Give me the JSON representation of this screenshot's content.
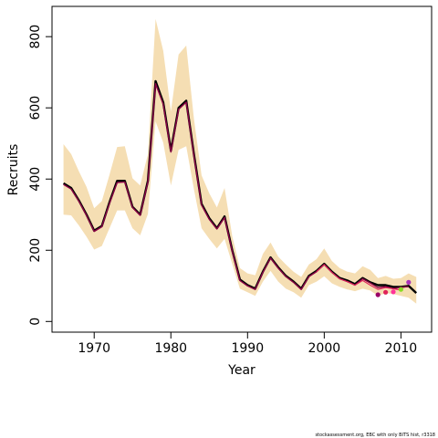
{
  "chart_data": {
    "type": "line",
    "xlabel": "Year",
    "ylabel": "Recruits",
    "xlim": [
      1964.5,
      2014
    ],
    "ylim": [
      -30,
      885
    ],
    "x_ticks": [
      1970,
      1980,
      1990,
      2000,
      2010
    ],
    "y_ticks": [
      0,
      200,
      400,
      600,
      800
    ],
    "x_tick_labels": [
      "1970",
      "1980",
      "1990",
      "2000",
      "2010"
    ],
    "y_tick_labels": [
      "0",
      "200",
      "400",
      "600",
      "800"
    ],
    "grid": false,
    "footnote": "stockassessment.org, EBC with only BITS hist, r3318",
    "colors": {
      "band": "#f5deb3",
      "main": "#000000",
      "retro": "#cc1a66",
      "retro_dark": "#8b0045",
      "point_purple": "#990066",
      "point_red": "#e0245a",
      "point_pink": "#ff3399",
      "point_green": "#88dd22",
      "point_magenta": "#aa33bb"
    },
    "confidence_band": {
      "x": [
        1966,
        1967,
        1968,
        1969,
        1970,
        1971,
        1972,
        1973,
        1974,
        1975,
        1976,
        1977,
        1978,
        1979,
        1980,
        1981,
        1982,
        1983,
        1984,
        1985,
        1986,
        1987,
        1988,
        1989,
        1990,
        1991,
        1992,
        1993,
        1994,
        1995,
        1996,
        1997,
        1998,
        1999,
        2000,
        2001,
        2002,
        2003,
        2004,
        2005,
        2006,
        2007,
        2008,
        2009,
        2010,
        2011,
        2012
      ],
      "lower": [
        300,
        298,
        270,
        238,
        202,
        212,
        262,
        312,
        312,
        262,
        242,
        302,
        562,
        502,
        382,
        482,
        492,
        372,
        262,
        232,
        205,
        232,
        162,
        92,
        82,
        72,
        112,
        142,
        112,
        92,
        82,
        67,
        102,
        112,
        127,
        107,
        97,
        90,
        85,
        92,
        87,
        72,
        80,
        77,
        72,
        67,
        50
      ],
      "upper": [
        498,
        470,
        422,
        378,
        318,
        338,
        412,
        490,
        492,
        402,
        382,
        470,
        850,
        760,
        590,
        750,
        775,
        570,
        410,
        360,
        320,
        375,
        240,
        150,
        135,
        130,
        190,
        222,
        182,
        160,
        140,
        125,
        160,
        175,
        205,
        170,
        150,
        140,
        135,
        155,
        145,
        122,
        128,
        120,
        122,
        135,
        125
      ]
    },
    "series": [
      {
        "x": [
          1966,
          1967,
          1968,
          1969,
          1970,
          1971,
          1972,
          1973,
          1974,
          1975,
          1976,
          1977,
          1978,
          1979,
          1980,
          1981,
          1982,
          1983,
          1984,
          1985,
          1986,
          1987,
          1988,
          1989,
          1990,
          1991,
          1992,
          1993,
          1994,
          1995,
          1996,
          1997,
          1998,
          1999,
          2000,
          2001,
          2002,
          2003,
          2004,
          2005,
          2006,
          2007,
          2008,
          2009,
          2010,
          2011,
          2012
        ],
        "values": [
          388,
          375,
          340,
          300,
          255,
          268,
          335,
          395,
          395,
          322,
          300,
          395,
          675,
          615,
          480,
          600,
          620,
          470,
          330,
          290,
          262,
          295,
          200,
          118,
          102,
          92,
          140,
          180,
          152,
          128,
          112,
          92,
          128,
          142,
          162,
          140,
          122,
          115,
          105,
          122,
          110,
          102,
          102,
          97,
          97,
          100,
          80
        ],
        "color": "#000000"
      },
      {
        "x": [
          1966,
          1967,
          1968,
          1969,
          1970,
          1971,
          1972,
          1973,
          1974,
          1975,
          1976,
          1977,
          1978,
          1979,
          1980,
          1981,
          1982,
          1983,
          1984,
          1985,
          1986,
          1987,
          1988,
          1989,
          1990,
          1991,
          1992,
          1993,
          1994,
          1995,
          1996,
          1997,
          1998,
          1999,
          2000,
          2001,
          2002,
          2003,
          2004,
          2005,
          2006,
          2007,
          2008,
          2009,
          2010,
          2011
        ],
        "values": [
          385,
          372,
          338,
          298,
          253,
          266,
          332,
          390,
          392,
          320,
          298,
          392,
          668,
          610,
          476,
          596,
          616,
          466,
          327,
          287,
          260,
          292,
          197,
          115,
          100,
          90,
          138,
          178,
          150,
          126,
          110,
          90,
          126,
          140,
          160,
          138,
          120,
          112,
          102,
          120,
          108,
          95,
          98,
          92,
          96,
          98
        ],
        "color": "#8b0045"
      },
      {
        "x": [
          1999,
          2000,
          2001,
          2002,
          2003,
          2004,
          2005,
          2006,
          2007,
          2008,
          2009,
          2010
        ],
        "values": [
          140,
          160,
          138,
          120,
          112,
          102,
          115,
          102,
          90,
          95,
          92,
          88
        ],
        "color": "#e0245a"
      }
    ],
    "points": [
      {
        "x": 2007,
        "y": 75,
        "color": "#990066"
      },
      {
        "x": 2008,
        "y": 82,
        "color": "#e0245a"
      },
      {
        "x": 2009,
        "y": 83,
        "color": "#ff3399"
      },
      {
        "x": 2010,
        "y": 90,
        "color": "#88dd22"
      },
      {
        "x": 2011,
        "y": 110,
        "color": "#aa33bb"
      }
    ]
  }
}
